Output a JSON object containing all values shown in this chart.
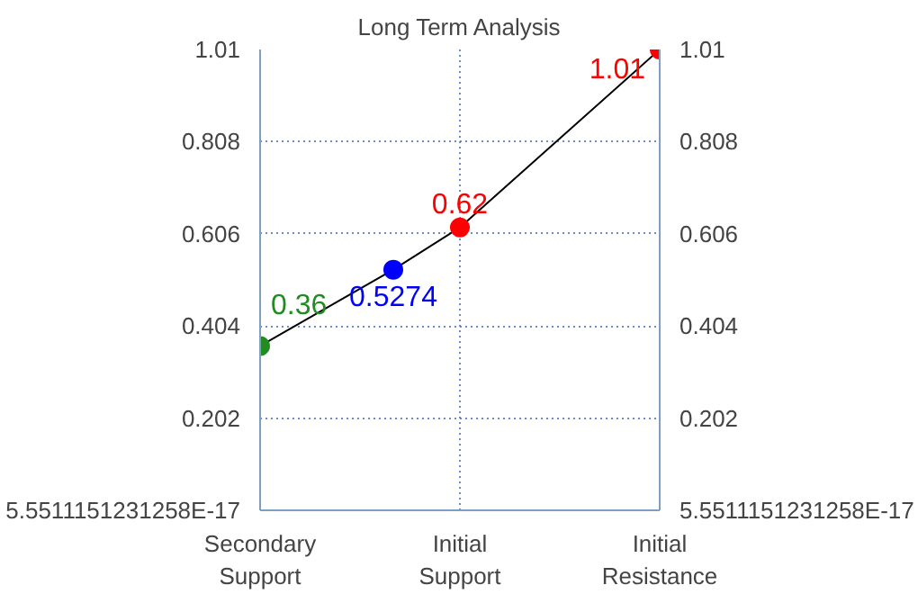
{
  "chart_data": {
    "type": "line",
    "title": "Long Term Analysis",
    "categories": [
      "Secondary Support",
      null,
      null,
      "Initial Support",
      null,
      null,
      "Initial Resistance"
    ],
    "series": [
      {
        "color": "#000000",
        "colors": [
          "#228b22",
          null,
          "#0000ff",
          "#ff0000",
          null,
          null,
          "#ff0000"
        ],
        "values": [
          0.36,
          null,
          0.5274,
          0.62,
          null,
          null,
          1.01
        ]
      }
    ],
    "ylim": [
      0,
      1.01
    ],
    "yticks": [
      {
        "value": 0,
        "label": "5.5511151231258E-17"
      },
      0.202,
      0.404,
      0.606,
      0.808,
      1.01
    ],
    "y2lim": [
      0,
      1.01
    ],
    "y2ticks": [
      {
        "value": 0,
        "label": "5.5511151231258E-17"
      },
      0.202,
      0.404,
      0.606,
      0.808,
      1.01
    ],
    "grid": true,
    "marker": "circle",
    "data_labels": true,
    "line_style": "solid"
  }
}
